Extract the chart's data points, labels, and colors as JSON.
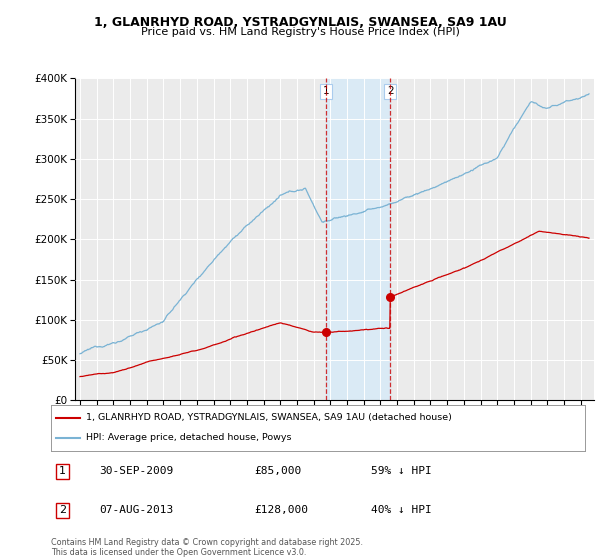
{
  "title_line1": "1, GLANRHYD ROAD, YSTRADGYNLAIS, SWANSEA, SA9 1AU",
  "title_line2": "Price paid vs. HM Land Registry's House Price Index (HPI)",
  "legend_line1": "1, GLANRHYD ROAD, YSTRADGYNLAIS, SWANSEA, SA9 1AU (detached house)",
  "legend_line2": "HPI: Average price, detached house, Powys",
  "hpi_color": "#7ab3d4",
  "price_color": "#cc0000",
  "shading_color": "#daeaf5",
  "t1_year": 2009.75,
  "t1_price": 85000,
  "t2_year": 2013.583,
  "t2_price": 128000,
  "ylim": [
    0,
    400000
  ],
  "yticks": [
    0,
    50000,
    100000,
    150000,
    200000,
    250000,
    300000,
    350000,
    400000
  ],
  "footer": "Contains HM Land Registry data © Crown copyright and database right 2025.\nThis data is licensed under the Open Government Licence v3.0.",
  "background_color": "#ebebeb"
}
